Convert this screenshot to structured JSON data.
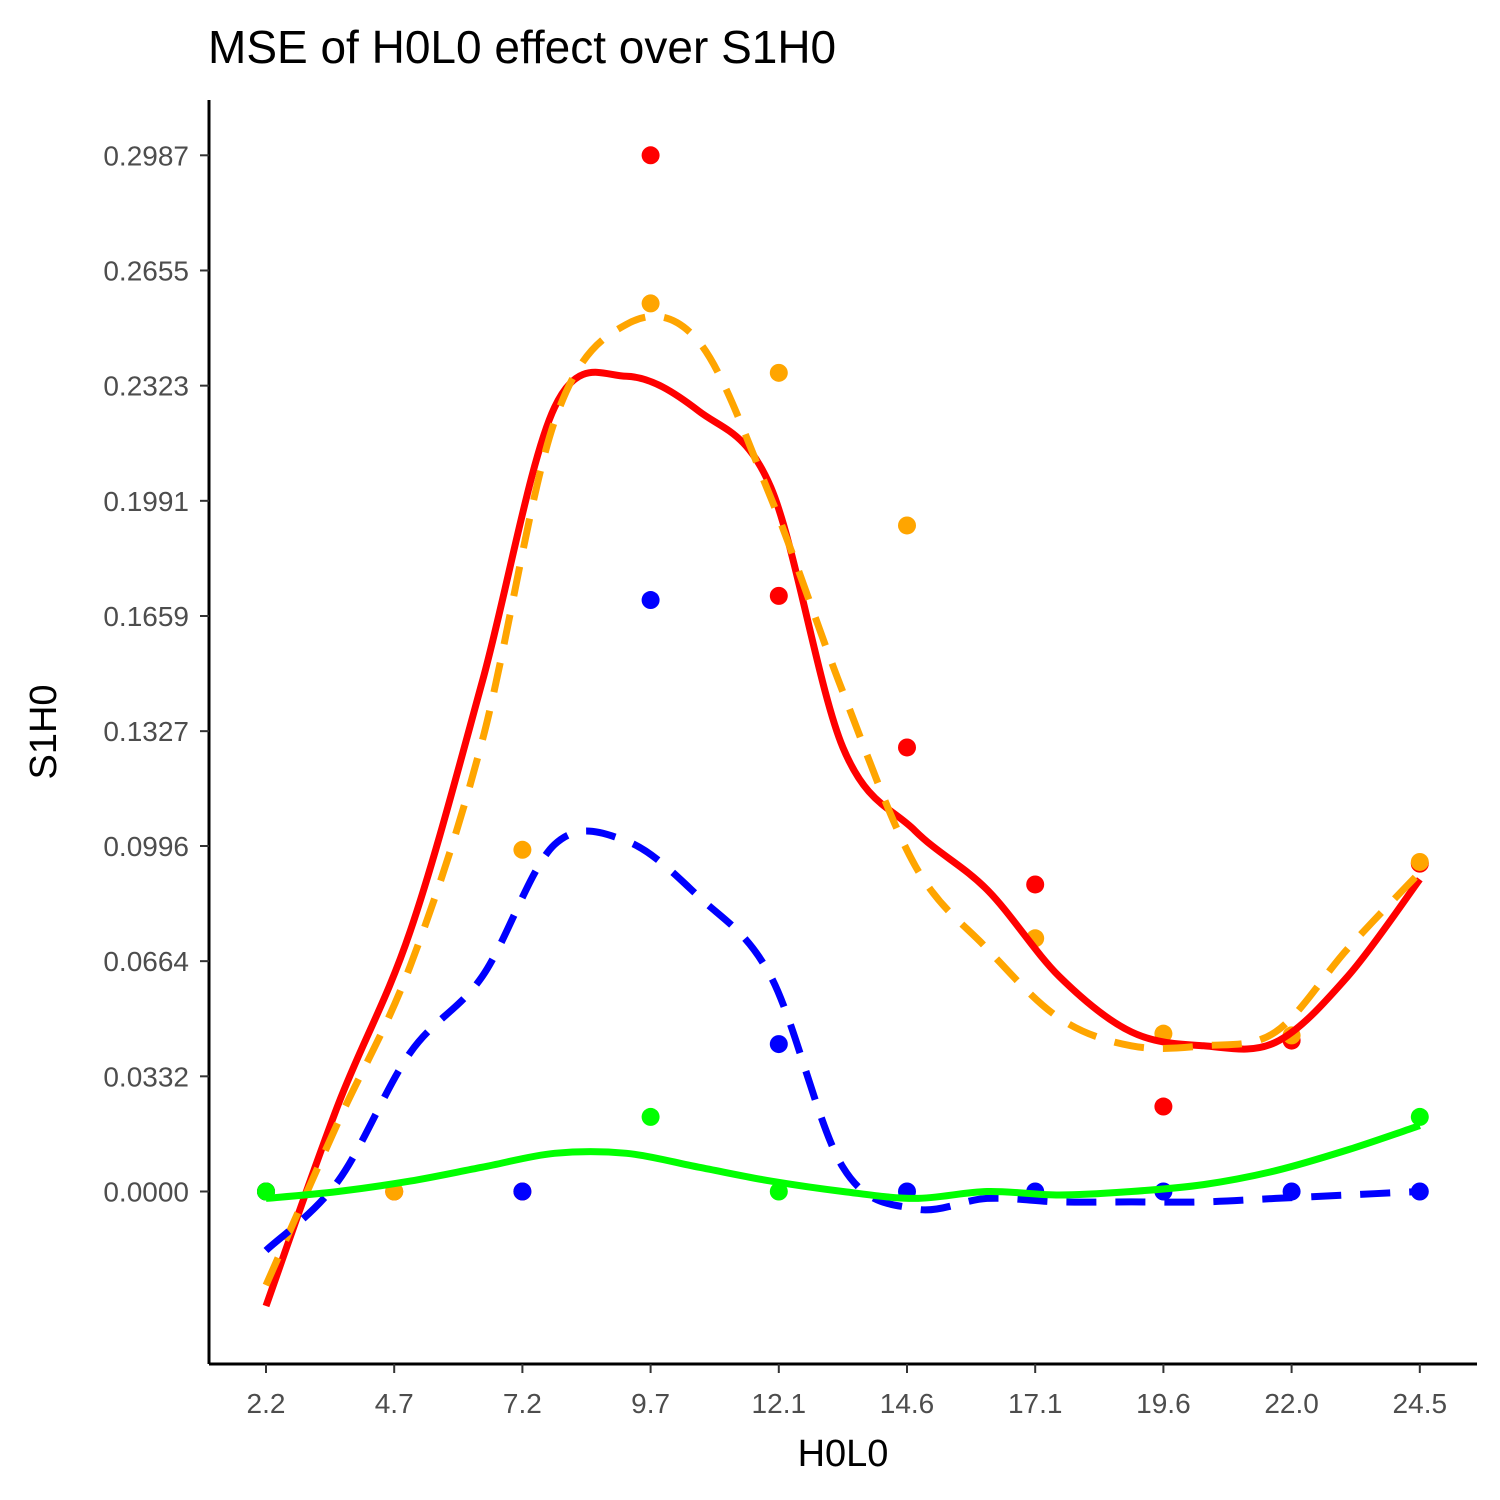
{
  "chart_data": {
    "type": "scatter",
    "title": "MSE of H0L0 effect over  S1H0",
    "xlabel": "H0L0",
    "ylabel": "S1H0",
    "x_ticks": [
      "2.2",
      "4.7",
      "7.2",
      "9.7",
      "12.1",
      "14.6",
      "17.1",
      "19.6",
      "22.0",
      "24.5"
    ],
    "y_ticks": [
      "0.0000",
      "0.0332",
      "0.0664",
      "0.0996",
      "0.1327",
      "0.1659",
      "0.1991",
      "0.2323",
      "0.2655",
      "0.2987"
    ],
    "ylim": [
      -0.049,
      0.3145
    ],
    "grid": false,
    "legend": "none",
    "series": [
      {
        "color": "#ff0000",
        "line_style": "solid",
        "points": [
          0,
          0,
          0,
          0.2987,
          0.1717,
          0.128,
          0.0885,
          0.0245,
          0.0435,
          0.0945
        ],
        "smooth": [
          -0.033,
          0.025,
          0.075,
          0.147,
          0.226,
          0.235,
          0.225,
          0.203,
          0.128,
          0.104,
          0.087,
          0.062,
          0.046,
          0.042,
          0.043,
          0.062,
          0.09
        ]
      },
      {
        "color": "#ffa500",
        "line_style": "dashed",
        "points": [
          0,
          0,
          0.0985,
          0.256,
          0.236,
          0.192,
          0.073,
          0.0455,
          0.045,
          0.095
        ],
        "smooth": [
          -0.027,
          0.02,
          0.065,
          0.13,
          0.222,
          0.25,
          0.245,
          0.2,
          0.144,
          0.094,
          0.07,
          0.05,
          0.042,
          0.042,
          0.046,
          0.07,
          0.092
        ]
      },
      {
        "color": "#0000ff",
        "line_style": "dashed",
        "points": [
          0,
          null,
          0,
          0.1705,
          0.0425,
          0,
          0,
          0,
          0,
          0
        ],
        "smooth": [
          -0.017,
          0.003,
          0.04,
          0.062,
          0.1,
          0.101,
          0.085,
          0.062,
          0.007,
          -0.005,
          -0.002,
          -0.003,
          -0.003,
          -0.003,
          -0.002,
          -0.001,
          0.0
        ]
      },
      {
        "color": "#00ff00",
        "line_style": "solid",
        "points": [
          0,
          null,
          null,
          0.0215,
          0,
          null,
          null,
          null,
          null,
          0.0215
        ],
        "smooth": [
          -0.002,
          0.0,
          0.003,
          0.007,
          0.011,
          0.011,
          0.007,
          0.003,
          0.0,
          -0.002,
          0.0,
          -0.001,
          0.0,
          0.002,
          0.006,
          0.012,
          0.019
        ]
      }
    ]
  }
}
